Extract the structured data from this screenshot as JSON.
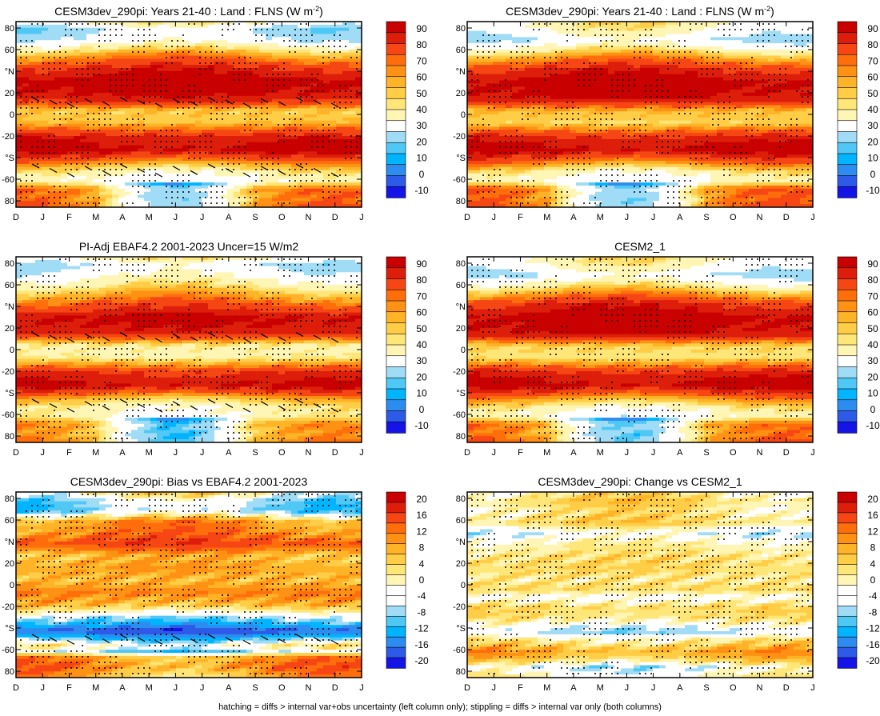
{
  "footer": "hatching = diffs > internal var+obs uncertainty (left column only); stippling = diffs > internal var only (both columns)",
  "colors": {
    "main_levels": [
      "#1414e6",
      "#2d5ae6",
      "#2d8cf0",
      "#00b4ff",
      "#50c8f5",
      "#a0dcf5",
      "#ffffff",
      "#fff5b4",
      "#ffe678",
      "#ffcd46",
      "#ffb428",
      "#ff9114",
      "#ff6e0a",
      "#f54614",
      "#dc1e0a",
      "#c80000"
    ],
    "diff_levels": [
      "#1414e6",
      "#2d5ae6",
      "#2d8cf0",
      "#00b4ff",
      "#50c8f5",
      "#a0dcf5",
      "#ffffff",
      "#ffffff",
      "#fff5b4",
      "#ffe678",
      "#ffcd46",
      "#ffb428",
      "#ff9114",
      "#ff6e0a",
      "#f54614",
      "#dc1e0a",
      "#c80000"
    ]
  },
  "chart_data": [
    {
      "type": "heatmap",
      "title": "CESM3dev_290pi: Years 21-40 : Land : FLNS (W m",
      "title_sup": "-2",
      "title_end": ")",
      "x": [
        "D",
        "J",
        "F",
        "M",
        "A",
        "M",
        "J",
        "J",
        "A",
        "S",
        "O",
        "N",
        "D",
        "J"
      ],
      "y_ticks": [
        "80",
        "60",
        "°N",
        "20",
        "0",
        "-20",
        "°S",
        "-60",
        "80"
      ],
      "colorbar_labels": [
        "90",
        "80",
        "70",
        "60",
        "50",
        "40",
        "30",
        "20",
        "10",
        "0",
        "-10"
      ],
      "ylim": [
        -90,
        90
      ],
      "latitude_profile": [
        {
          "lat": 90,
          "v": 38
        },
        {
          "lat": 82,
          "v": 18
        },
        {
          "lat": 72,
          "v": 25
        },
        {
          "lat": 60,
          "v": 55
        },
        {
          "lat": 45,
          "v": 82
        },
        {
          "lat": 30,
          "v": 96
        },
        {
          "lat": 15,
          "v": 85
        },
        {
          "lat": 3,
          "v": 52
        },
        {
          "lat": -8,
          "v": 55
        },
        {
          "lat": -22,
          "v": 85
        },
        {
          "lat": -35,
          "v": 92
        },
        {
          "lat": -48,
          "v": 60
        },
        {
          "lat": -56,
          "v": 42
        },
        {
          "lat": -64,
          "v": 30
        },
        {
          "lat": -72,
          "v": 60
        },
        {
          "lat": -82,
          "v": 58
        },
        {
          "lat": -90,
          "v": 62
        }
      ],
      "seasonal_amplitude": 8,
      "polar_south_seasonal": 35,
      "stipple": true,
      "hatch": true
    },
    {
      "type": "heatmap",
      "title": "CESM3dev_290pi: Years 21-40 : Land : FLNS (W m",
      "title_sup": "-2",
      "title_end": ")",
      "x": [
        "D",
        "J",
        "F",
        "M",
        "A",
        "M",
        "J",
        "J",
        "A",
        "S",
        "O",
        "N",
        "D",
        "J"
      ],
      "y_ticks": [
        "80",
        "60",
        "°N",
        "20",
        "0",
        "-20",
        "°S",
        "-60",
        "80"
      ],
      "colorbar_labels": [
        "90",
        "80",
        "70",
        "60",
        "50",
        "40",
        "30",
        "20",
        "10",
        "0",
        "-10"
      ],
      "ylim": [
        -90,
        90
      ],
      "latitude_profile": [
        {
          "lat": 90,
          "v": 40
        },
        {
          "lat": 82,
          "v": 35
        },
        {
          "lat": 72,
          "v": 22
        },
        {
          "lat": 60,
          "v": 50
        },
        {
          "lat": 45,
          "v": 80
        },
        {
          "lat": 30,
          "v": 95
        },
        {
          "lat": 15,
          "v": 88
        },
        {
          "lat": 3,
          "v": 55
        },
        {
          "lat": -8,
          "v": 50
        },
        {
          "lat": -22,
          "v": 82
        },
        {
          "lat": -35,
          "v": 92
        },
        {
          "lat": -48,
          "v": 62
        },
        {
          "lat": -56,
          "v": 42
        },
        {
          "lat": -64,
          "v": 30
        },
        {
          "lat": -72,
          "v": 62
        },
        {
          "lat": -82,
          "v": 58
        },
        {
          "lat": -90,
          "v": 62
        }
      ],
      "seasonal_amplitude": 9,
      "polar_south_seasonal": 36,
      "stipple": true,
      "hatch": false
    },
    {
      "type": "heatmap",
      "title": "PI-Adj EBAF4.2 2001-2023 Uncer=15 W/m2",
      "x": [
        "D",
        "J",
        "F",
        "M",
        "A",
        "M",
        "J",
        "J",
        "A",
        "S",
        "O",
        "N",
        "D",
        "J"
      ],
      "y_ticks": [
        "80",
        "60",
        "°N",
        "20",
        "0",
        "-20",
        "°S",
        "-60",
        "80"
      ],
      "colorbar_labels": [
        "90",
        "80",
        "70",
        "60",
        "50",
        "40",
        "30",
        "20",
        "10",
        "0",
        "-10"
      ],
      "ylim": [
        -90,
        90
      ],
      "latitude_profile": [
        {
          "lat": 90,
          "v": 40
        },
        {
          "lat": 82,
          "v": 22
        },
        {
          "lat": 72,
          "v": 30
        },
        {
          "lat": 60,
          "v": 48
        },
        {
          "lat": 45,
          "v": 70
        },
        {
          "lat": 30,
          "v": 92
        },
        {
          "lat": 15,
          "v": 82
        },
        {
          "lat": 3,
          "v": 42
        },
        {
          "lat": -8,
          "v": 45
        },
        {
          "lat": -22,
          "v": 80
        },
        {
          "lat": -35,
          "v": 90
        },
        {
          "lat": -48,
          "v": 55
        },
        {
          "lat": -56,
          "v": 40
        },
        {
          "lat": -64,
          "v": 38
        },
        {
          "lat": -72,
          "v": 55
        },
        {
          "lat": -82,
          "v": 52
        },
        {
          "lat": -90,
          "v": 56
        }
      ],
      "seasonal_amplitude": 8,
      "polar_south_seasonal": 38,
      "stipple": true,
      "hatch": true
    },
    {
      "type": "heatmap",
      "title": "CESM2_1",
      "x": [
        "D",
        "J",
        "F",
        "M",
        "A",
        "M",
        "J",
        "J",
        "A",
        "S",
        "O",
        "N",
        "D",
        "J"
      ],
      "y_ticks": [
        "80",
        "60",
        "°N",
        "20",
        "0",
        "-20",
        "°S",
        "-60",
        "80"
      ],
      "colorbar_labels": [
        "90",
        "80",
        "70",
        "60",
        "50",
        "40",
        "30",
        "20",
        "10",
        "0",
        "-10"
      ],
      "ylim": [
        -90,
        90
      ],
      "latitude_profile": [
        {
          "lat": 90,
          "v": 40
        },
        {
          "lat": 82,
          "v": 35
        },
        {
          "lat": 72,
          "v": 22
        },
        {
          "lat": 60,
          "v": 48
        },
        {
          "lat": 45,
          "v": 80
        },
        {
          "lat": 30,
          "v": 95
        },
        {
          "lat": 15,
          "v": 88
        },
        {
          "lat": 3,
          "v": 50
        },
        {
          "lat": -8,
          "v": 48
        },
        {
          "lat": -22,
          "v": 82
        },
        {
          "lat": -35,
          "v": 92
        },
        {
          "lat": -48,
          "v": 60
        },
        {
          "lat": -56,
          "v": 42
        },
        {
          "lat": -64,
          "v": 30
        },
        {
          "lat": -72,
          "v": 58
        },
        {
          "lat": -82,
          "v": 55
        },
        {
          "lat": -90,
          "v": 60
        }
      ],
      "seasonal_amplitude": 9,
      "polar_south_seasonal": 36,
      "stipple": true,
      "hatch": false
    },
    {
      "type": "heatmap",
      "title": "CESM3dev_290pi: Bias vs EBAF4.2 2001-2023",
      "x": [
        "D",
        "J",
        "F",
        "M",
        "A",
        "M",
        "J",
        "J",
        "A",
        "S",
        "O",
        "N",
        "D",
        "J"
      ],
      "y_ticks": [
        "80",
        "60",
        "°N",
        "20",
        "0",
        "-20",
        "°S",
        "-60",
        "80"
      ],
      "colorbar_labels": [
        "20",
        "16",
        "12",
        "8",
        "4",
        "0",
        "-4",
        "-8",
        "-12",
        "-16",
        "-20"
      ],
      "ylim": [
        -90,
        90
      ],
      "latitude_profile": [
        {
          "lat": 90,
          "v": 2
        },
        {
          "lat": 82,
          "v": -4
        },
        {
          "lat": 72,
          "v": -6
        },
        {
          "lat": 62,
          "v": 8
        },
        {
          "lat": 50,
          "v": 10
        },
        {
          "lat": 40,
          "v": 14
        },
        {
          "lat": 28,
          "v": 6
        },
        {
          "lat": 15,
          "v": 8
        },
        {
          "lat": 5,
          "v": 6
        },
        {
          "lat": -8,
          "v": 10
        },
        {
          "lat": -20,
          "v": 6
        },
        {
          "lat": -30,
          "v": -3
        },
        {
          "lat": -38,
          "v": -10
        },
        {
          "lat": -45,
          "v": -19
        },
        {
          "lat": -52,
          "v": -8
        },
        {
          "lat": -60,
          "v": 2
        },
        {
          "lat": -64,
          "v": -6
        },
        {
          "lat": -70,
          "v": 8
        },
        {
          "lat": -80,
          "v": 10
        },
        {
          "lat": -90,
          "v": 6
        }
      ],
      "seasonal_amplitude": 3,
      "polar_south_seasonal": 0,
      "stipple": true,
      "hatch": true
    },
    {
      "type": "heatmap",
      "title": "CESM3dev_290pi: Change vs CESM2_1",
      "x": [
        "D",
        "J",
        "F",
        "M",
        "A",
        "M",
        "J",
        "J",
        "A",
        "S",
        "O",
        "N",
        "D",
        "J"
      ],
      "y_ticks": [
        "80",
        "60",
        "°N",
        "20",
        "0",
        "-20",
        "°S",
        "-60",
        "80"
      ],
      "colorbar_labels": [
        "20",
        "16",
        "12",
        "8",
        "4",
        "0",
        "-4",
        "-8",
        "-12",
        "-16",
        "-20"
      ],
      "ylim": [
        -90,
        90
      ],
      "latitude_profile": [
        {
          "lat": 90,
          "v": 1
        },
        {
          "lat": 82,
          "v": 4
        },
        {
          "lat": 72,
          "v": 2
        },
        {
          "lat": 60,
          "v": 4
        },
        {
          "lat": 50,
          "v": -3
        },
        {
          "lat": 40,
          "v": 1
        },
        {
          "lat": 28,
          "v": 3
        },
        {
          "lat": 15,
          "v": 4
        },
        {
          "lat": 5,
          "v": 2
        },
        {
          "lat": -5,
          "v": 4
        },
        {
          "lat": -12,
          "v": -2
        },
        {
          "lat": -22,
          "v": 4
        },
        {
          "lat": -32,
          "v": 3
        },
        {
          "lat": -40,
          "v": -2
        },
        {
          "lat": -46,
          "v": -5
        },
        {
          "lat": -52,
          "v": 1
        },
        {
          "lat": -58,
          "v": 4
        },
        {
          "lat": -64,
          "v": 8
        },
        {
          "lat": -72,
          "v": 5
        },
        {
          "lat": -80,
          "v": -3
        },
        {
          "lat": -90,
          "v": 1
        }
      ],
      "seasonal_amplitude": 2,
      "polar_south_seasonal": 0,
      "stipple": true,
      "hatch": false
    }
  ]
}
